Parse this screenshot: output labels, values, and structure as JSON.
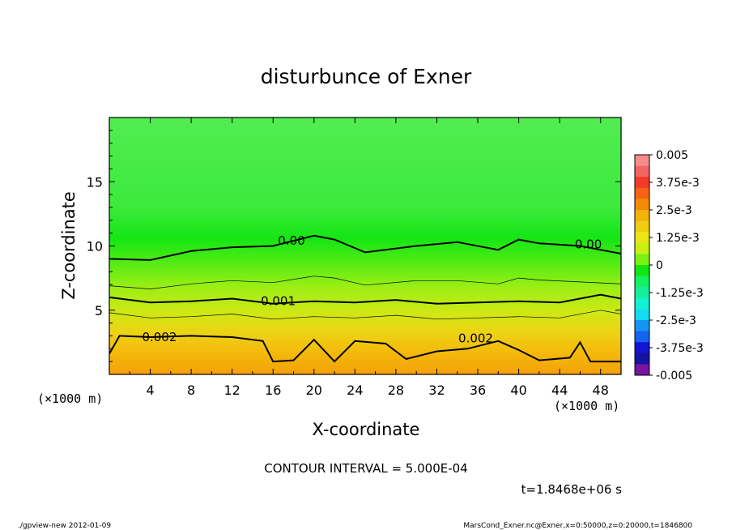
{
  "chart_data": {
    "type": "heatmap",
    "title": "disturbunce of Exner",
    "xlabel": "X-coordinate",
    "ylabel": "Z-coordinate",
    "x_unit": "(×1000 m)",
    "y_unit": "(×1000 m)",
    "xlim": [
      0,
      50
    ],
    "ylim": [
      0,
      20
    ],
    "x_ticks": [
      "4",
      "8",
      "12",
      "16",
      "20",
      "24",
      "28",
      "32",
      "36",
      "40",
      "44",
      "48"
    ],
    "y_ticks": [
      "5",
      "10",
      "15"
    ],
    "colorbar": {
      "labels": [
        "0.005",
        "3.75e-3",
        "2.5e-3",
        "1.25e-3",
        "0",
        "-1.25e-3",
        "-2.5e-3",
        "-3.75e-3",
        "-0.005"
      ],
      "range": [
        -0.005,
        0.005
      ],
      "colors_top_to_bottom": [
        "#f48c8c",
        "#f46464",
        "#f43a2a",
        "#f46414",
        "#f48a0a",
        "#f4b20a",
        "#f0cc14",
        "#eae614",
        "#c8f014",
        "#7cf014",
        "#14e614",
        "#14f064",
        "#14f09a",
        "#14f0d2",
        "#14dcf0",
        "#1496f0",
        "#1464f0",
        "#1414d2",
        "#1414a0",
        "#7814a0"
      ]
    },
    "contour_labels": [
      "0.00",
      "0.00",
      "0.001",
      "0.002",
      "0.002"
    ],
    "contour_interval": "CONTOUR INTERVAL = 5.000E-04",
    "time": "t=1.8468e+06 s",
    "zero_contour_z": [
      [
        0,
        9.0
      ],
      [
        4,
        8.9
      ],
      [
        8,
        9.6
      ],
      [
        12,
        9.9
      ],
      [
        16,
        10.0
      ],
      [
        20,
        10.8
      ],
      [
        22,
        10.5
      ],
      [
        25,
        9.5
      ],
      [
        30,
        10.0
      ],
      [
        34,
        10.3
      ],
      [
        38,
        9.7
      ],
      [
        40,
        10.5
      ],
      [
        42,
        10.2
      ],
      [
        46,
        10.0
      ],
      [
        50,
        9.4
      ]
    ],
    "contour_001_z": [
      [
        0,
        6.0
      ],
      [
        4,
        5.6
      ],
      [
        8,
        5.7
      ],
      [
        12,
        5.9
      ],
      [
        16,
        5.5
      ],
      [
        20,
        5.7
      ],
      [
        24,
        5.6
      ],
      [
        28,
        5.8
      ],
      [
        32,
        5.5
      ],
      [
        36,
        5.6
      ],
      [
        40,
        5.7
      ],
      [
        44,
        5.6
      ],
      [
        48,
        6.2
      ],
      [
        50,
        5.9
      ]
    ],
    "contour_002_z": [
      [
        0,
        1.6
      ],
      [
        1,
        3.0
      ],
      [
        4,
        2.9
      ],
      [
        8,
        3.0
      ],
      [
        12,
        2.9
      ],
      [
        15,
        2.6
      ],
      [
        16,
        1.0
      ],
      [
        18,
        1.1
      ],
      [
        20,
        2.7
      ],
      [
        22,
        1.0
      ],
      [
        24,
        2.6
      ],
      [
        27,
        2.4
      ],
      [
        29,
        1.2
      ],
      [
        32,
        1.8
      ],
      [
        35,
        2.0
      ],
      [
        38,
        2.6
      ],
      [
        40,
        1.9
      ],
      [
        42,
        1.1
      ],
      [
        45,
        1.3
      ],
      [
        46,
        2.5
      ],
      [
        47,
        1.0
      ],
      [
        50,
        1.0
      ]
    ]
  },
  "footer": {
    "left": "./gpview-new  2012-01-09",
    "right": "MarsCond_Exner.nc@Exner,x=0:50000,z=0:20000,t=1846800"
  }
}
